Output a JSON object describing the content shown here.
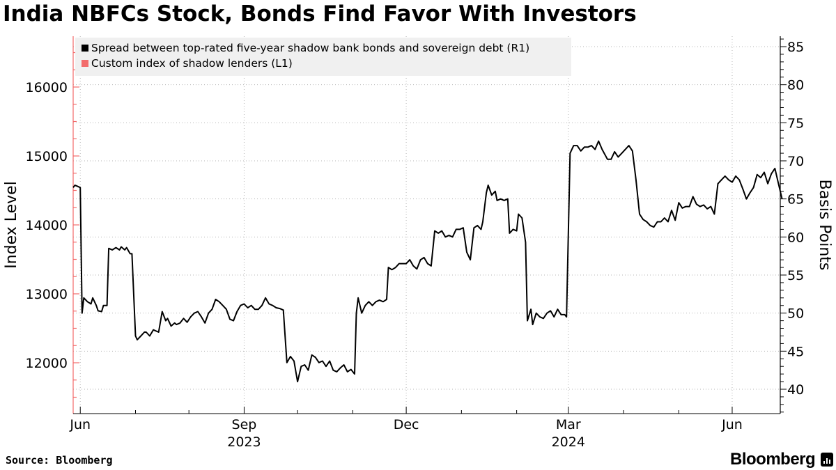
{
  "chart_data": {
    "type": "line",
    "title": "India NBFCs Stock, Bonds Find Favor With Investors",
    "ylabel_left": "Index Level",
    "ylabel_right": "Basis Points",
    "left_axis": {
      "range": [
        11300,
        16750
      ],
      "ticks": [
        12000,
        13000,
        14000,
        15000,
        16000
      ],
      "tick_labels": [
        "12000",
        "13000",
        "14000",
        "15000",
        "16000"
      ]
    },
    "right_axis": {
      "range": [
        37,
        86
      ],
      "ticks": [
        40,
        45,
        50,
        55,
        60,
        65,
        70,
        75,
        80,
        85
      ],
      "tick_labels": [
        "40",
        "45",
        "50",
        "55",
        "60",
        "65",
        "70",
        "75",
        "80",
        "85"
      ]
    },
    "x_axis": {
      "range_days": [
        0,
        380
      ],
      "month_ticks": [
        {
          "label": "Jun",
          "day": 4
        },
        {
          "label": "Sep",
          "day": 96
        },
        {
          "label": "Dec",
          "day": 187
        },
        {
          "label": "Mar",
          "day": 278
        },
        {
          "label": "Jun",
          "day": 370
        }
      ],
      "minor_tick_days": [
        35,
        65,
        126,
        157,
        218,
        249,
        309,
        340
      ],
      "year_labels": [
        {
          "label": "2023",
          "day": 96
        },
        {
          "label": "2024",
          "day": 278
        }
      ]
    },
    "legend": {
      "position": "top-left",
      "entries": [
        {
          "label": "Spread between top-rated five-year shadow bank bonds and sovereign debt (R1)",
          "color": "#000000"
        },
        {
          "label": "Custom index of shadow lenders (L1)",
          "color": "#f26b6b"
        }
      ]
    },
    "series": [
      {
        "name": "Spread between top-rated five-year shadow bank bonds and sovereign debt (R1)",
        "axis": "right",
        "color": "#000000",
        "points": [
          [
            0,
            66.5
          ],
          [
            1,
            66.8
          ],
          [
            2,
            66.7
          ],
          [
            4,
            66.5
          ],
          [
            5,
            50
          ],
          [
            6,
            52
          ],
          [
            8,
            51.5
          ],
          [
            10,
            51.2
          ],
          [
            11,
            52
          ],
          [
            13,
            51
          ],
          [
            14,
            50.3
          ],
          [
            16,
            50.2
          ],
          [
            17,
            51
          ],
          [
            19,
            51
          ],
          [
            20,
            58.5
          ],
          [
            22,
            58.3
          ],
          [
            24,
            58.6
          ],
          [
            26,
            58.3
          ],
          [
            27,
            58.7
          ],
          [
            29,
            58.3
          ],
          [
            30,
            58.6
          ],
          [
            32,
            57.8
          ],
          [
            33,
            57.8
          ],
          [
            35,
            47
          ],
          [
            36,
            46.5
          ],
          [
            38,
            47
          ],
          [
            40,
            47.5
          ],
          [
            41,
            47.5
          ],
          [
            43,
            47
          ],
          [
            45,
            47.8
          ],
          [
            48,
            47.5
          ],
          [
            50,
            50.2
          ],
          [
            52,
            49
          ],
          [
            53,
            49.3
          ],
          [
            55,
            48.3
          ],
          [
            57,
            48.7
          ],
          [
            58,
            48.5
          ],
          [
            60,
            48.7
          ],
          [
            62,
            49.3
          ],
          [
            64,
            48.8
          ],
          [
            66,
            49.5
          ],
          [
            68,
            50
          ],
          [
            70,
            50.2
          ],
          [
            72,
            49.5
          ],
          [
            74,
            48.7
          ],
          [
            76,
            50
          ],
          [
            78,
            50.5
          ],
          [
            80,
            51.8
          ],
          [
            82,
            51.5
          ],
          [
            84,
            51
          ],
          [
            86,
            50.5
          ],
          [
            88,
            49.2
          ],
          [
            90,
            49
          ],
          [
            92,
            50.2
          ],
          [
            94,
            51
          ],
          [
            96,
            51.2
          ],
          [
            98,
            50.7
          ],
          [
            100,
            51
          ],
          [
            102,
            50.5
          ],
          [
            104,
            50.5
          ],
          [
            106,
            51
          ],
          [
            108,
            52
          ],
          [
            110,
            51.2
          ],
          [
            112,
            51
          ],
          [
            114,
            50.7
          ],
          [
            116,
            50.6
          ],
          [
            118,
            50.4
          ],
          [
            120,
            43.5
          ],
          [
            122,
            44.3
          ],
          [
            124,
            43.7
          ],
          [
            126,
            41
          ],
          [
            128,
            43
          ],
          [
            130,
            43.2
          ],
          [
            132,
            42.5
          ],
          [
            134,
            44.5
          ],
          [
            136,
            44.2
          ],
          [
            138,
            43.5
          ],
          [
            140,
            43.7
          ],
          [
            142,
            43
          ],
          [
            144,
            43.7
          ],
          [
            146,
            42.5
          ],
          [
            148,
            42.3
          ],
          [
            150,
            42.8
          ],
          [
            152,
            43.2
          ],
          [
            154,
            42.3
          ],
          [
            156,
            42.6
          ],
          [
            158,
            42
          ],
          [
            159,
            50
          ],
          [
            160,
            52
          ],
          [
            162,
            50
          ],
          [
            164,
            51
          ],
          [
            166,
            51.5
          ],
          [
            168,
            51
          ],
          [
            170,
            51.5
          ],
          [
            172,
            51.7
          ],
          [
            174,
            51.5
          ],
          [
            176,
            51.8
          ],
          [
            177,
            56
          ],
          [
            179,
            55.7
          ],
          [
            181,
            56
          ],
          [
            183,
            56.5
          ],
          [
            185,
            56.5
          ],
          [
            187,
            56.5
          ],
          [
            189,
            57
          ],
          [
            191,
            56.2
          ],
          [
            193,
            55.8
          ],
          [
            195,
            57
          ],
          [
            197,
            57.3
          ],
          [
            199,
            56.5
          ],
          [
            201,
            56.2
          ],
          [
            203,
            60.8
          ],
          [
            205,
            60.5
          ],
          [
            207,
            60.8
          ],
          [
            209,
            60
          ],
          [
            211,
            60.2
          ],
          [
            213,
            60
          ],
          [
            215,
            61
          ],
          [
            217,
            61
          ],
          [
            219,
            61.2
          ],
          [
            221,
            58
          ],
          [
            223,
            57
          ],
          [
            225,
            61.2
          ],
          [
            227,
            61.5
          ],
          [
            229,
            61
          ],
          [
            230,
            62
          ],
          [
            232,
            65.8
          ],
          [
            233,
            66.8
          ],
          [
            235,
            65.5
          ],
          [
            237,
            66
          ],
          [
            238,
            64.8
          ],
          [
            240,
            65
          ],
          [
            242,
            64.8
          ],
          [
            244,
            65
          ],
          [
            245,
            60.5
          ],
          [
            247,
            61
          ],
          [
            249,
            60.8
          ],
          [
            250,
            63
          ],
          [
            252,
            62.5
          ],
          [
            254,
            59.3
          ],
          [
            255,
            49
          ],
          [
            257,
            50.5
          ],
          [
            258,
            48.5
          ],
          [
            260,
            50
          ],
          [
            262,
            49.5
          ],
          [
            264,
            49.3
          ],
          [
            266,
            50
          ],
          [
            268,
            50.3
          ],
          [
            270,
            49.5
          ],
          [
            272,
            50.5
          ],
          [
            274,
            49.8
          ],
          [
            276,
            49.8
          ],
          [
            277,
            49.5
          ],
          [
            279,
            71
          ],
          [
            281,
            72
          ],
          [
            283,
            72
          ],
          [
            285,
            71.3
          ],
          [
            287,
            71.8
          ],
          [
            289,
            71.8
          ],
          [
            291,
            72
          ],
          [
            293,
            71.5
          ],
          [
            295,
            72.6
          ],
          [
            297,
            71.5
          ],
          [
            300,
            70.2
          ],
          [
            302,
            70.2
          ],
          [
            304,
            71.2
          ],
          [
            306,
            70.5
          ],
          [
            308,
            71
          ],
          [
            310,
            71.5
          ],
          [
            312,
            72
          ],
          [
            314,
            71.3
          ],
          [
            316,
            67.5
          ],
          [
            318,
            63
          ],
          [
            320,
            62.3
          ],
          [
            322,
            62
          ],
          [
            324,
            61.5
          ],
          [
            326,
            61.3
          ],
          [
            328,
            62
          ],
          [
            330,
            62
          ],
          [
            332,
            62.5
          ],
          [
            334,
            62
          ],
          [
            336,
            63.5
          ],
          [
            338,
            62.2
          ],
          [
            340,
            64.5
          ],
          [
            342,
            63.8
          ],
          [
            344,
            64
          ],
          [
            346,
            64
          ],
          [
            348,
            65.3
          ],
          [
            350,
            64.3
          ],
          [
            352,
            64
          ],
          [
            354,
            64.2
          ],
          [
            356,
            63.7
          ],
          [
            358,
            64
          ],
          [
            360,
            63
          ],
          [
            362,
            67
          ],
          [
            364,
            67.5
          ],
          [
            366,
            68
          ],
          [
            368,
            67.5
          ],
          [
            370,
            67.2
          ],
          [
            372,
            68
          ],
          [
            374,
            67.5
          ],
          [
            376,
            66.3
          ],
          [
            378,
            65
          ],
          [
            380,
            65.8
          ],
          [
            382,
            66.5
          ],
          [
            384,
            68.2
          ],
          [
            386,
            67.8
          ],
          [
            388,
            68.5
          ],
          [
            390,
            67
          ],
          [
            392,
            68.3
          ],
          [
            394,
            69
          ],
          [
            396,
            67
          ],
          [
            398,
            65
          ]
        ]
      },
      {
        "name": "Custom index of shadow lenders (L1)",
        "axis": "left",
        "color": "#f26b6b",
        "points": []
      }
    ]
  },
  "footer": {
    "source": "Source: Bloomberg",
    "brand": "Bloomberg"
  }
}
